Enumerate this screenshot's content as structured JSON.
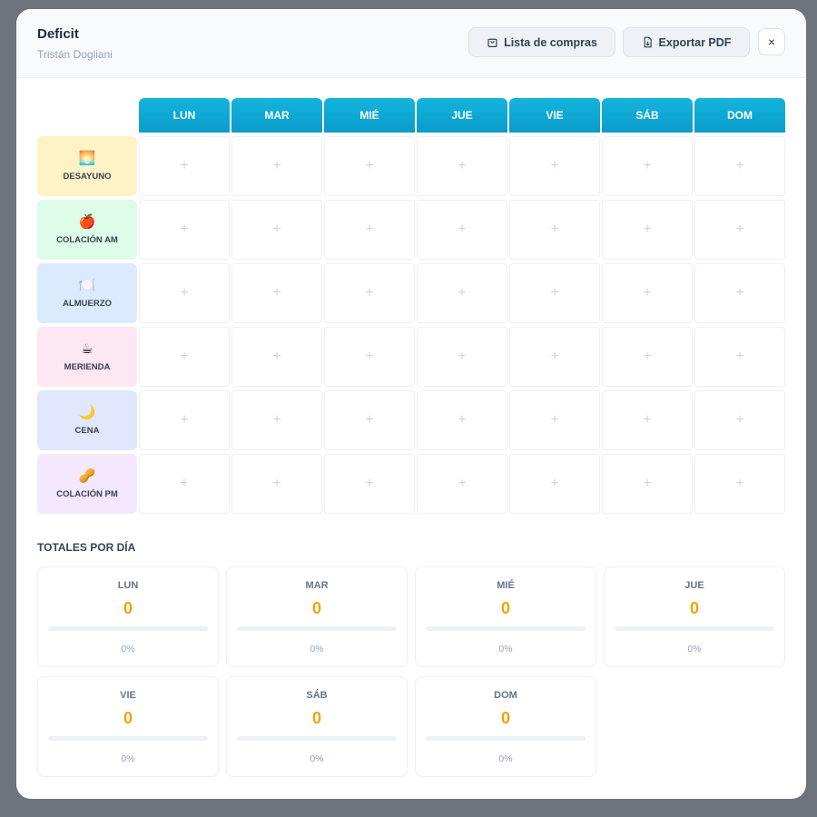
{
  "header": {
    "title": "Deficit",
    "subtitle": "Tristán Dogliani",
    "buttons": [
      "Lista de compras",
      "Exportar PDF"
    ],
    "close": "×"
  },
  "grid": {
    "days": [
      "LUN",
      "MAR",
      "MIÉ",
      "JUE",
      "VIE",
      "SÁB",
      "DOM"
    ],
    "meals": [
      {
        "icon": "🌅",
        "label": "DESAYUNO"
      },
      {
        "icon": "🍎",
        "label": "COLACIÓN AM"
      },
      {
        "icon": "🍽️",
        "label": "ALMUERZO"
      },
      {
        "icon": "☕",
        "label": "MERIENDA"
      },
      {
        "icon": "🌙",
        "label": "CENA"
      },
      {
        "icon": "🥜",
        "label": "COLACIÓN PM"
      }
    ],
    "add_symbol": "+"
  },
  "totals": {
    "title": "TOTALES POR DÍA",
    "days": [
      {
        "day": "LUN",
        "value": 0,
        "percent": "0%"
      },
      {
        "day": "MAR",
        "value": 0,
        "percent": "0%"
      },
      {
        "day": "MIÉ",
        "value": 0,
        "percent": "0%"
      },
      {
        "day": "JUE",
        "value": 0,
        "percent": "0%"
      },
      {
        "day": "VIE",
        "value": 0,
        "percent": "0%"
      },
      {
        "day": "SÁB",
        "value": 0,
        "percent": "0%"
      },
      {
        "day": "DOM",
        "value": 0,
        "percent": "0%"
      }
    ]
  }
}
